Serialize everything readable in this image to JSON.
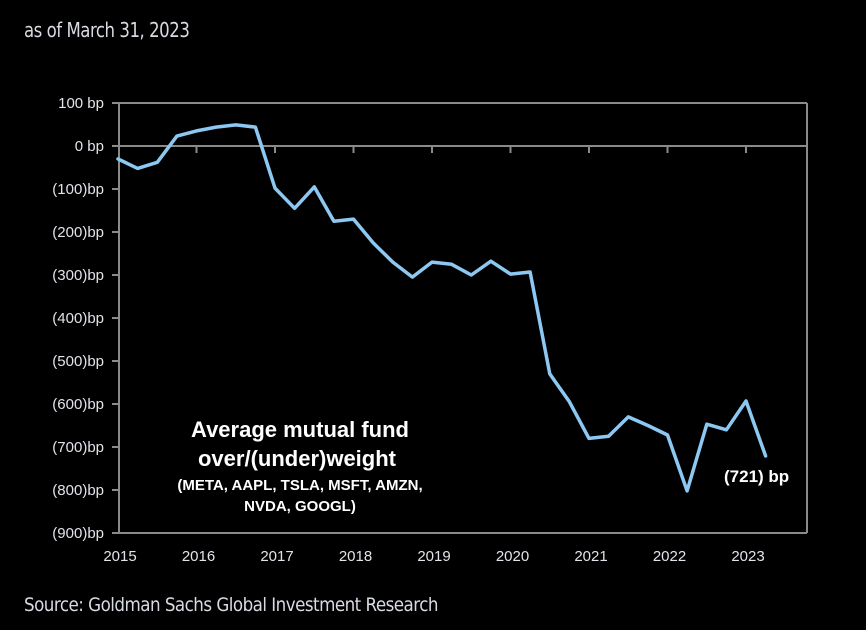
{
  "header": {
    "as_of": "as of March 31, 2023"
  },
  "footer": {
    "source": "Source: Goldman Sachs Global Investment Research"
  },
  "colors": {
    "line": "#8cc8f2",
    "axis": "#8a8a8a",
    "background": "#000000"
  },
  "chart_data": {
    "type": "line",
    "title": "Average mutual fund over/(under)weight",
    "subtitle": "(META, AAPL, TSLA, MSFT, AMZN, NVDA, GOOGL)",
    "annotation_lines": [
      "Average mutual fund",
      "over/(under)weight",
      "(META, AAPL, TSLA, MSFT, AMZN,",
      "NVDA, GOOGL)"
    ],
    "end_label": "(721)  bp",
    "xlabel": "",
    "ylabel": "",
    "xlim": [
      2015.0,
      2023.8
    ],
    "ylim": [
      -900,
      100
    ],
    "y_ticks": [
      100,
      0,
      -100,
      -200,
      -300,
      -400,
      -500,
      -600,
      -700,
      -800,
      -900
    ],
    "y_tick_labels": [
      "100 bp",
      "0 bp",
      "(100)bp",
      "(200)bp",
      "(300)bp",
      "(400)bp",
      "(500)bp",
      "(600)bp",
      "(700)bp",
      "(800)bp",
      "(900)bp"
    ],
    "x_ticks": [
      2015,
      2016,
      2017,
      2018,
      2019,
      2020,
      2021,
      2022,
      2023
    ],
    "x_tick_labels": [
      "2015",
      "2016",
      "2017",
      "2018",
      "2019",
      "2020",
      "2021",
      "2022",
      "2023"
    ],
    "grid": false,
    "legend": "none",
    "series": [
      {
        "name": "Average mutual fund over/(under)weight",
        "x": [
          2015.0,
          2015.25,
          2015.5,
          2015.75,
          2016.0,
          2016.25,
          2016.5,
          2016.75,
          2017.0,
          2017.25,
          2017.5,
          2017.75,
          2018.0,
          2018.25,
          2018.5,
          2018.75,
          2019.0,
          2019.25,
          2019.5,
          2019.75,
          2020.0,
          2020.25,
          2020.5,
          2020.75,
          2021.0,
          2021.25,
          2021.5,
          2021.75,
          2022.0,
          2022.25,
          2022.5,
          2022.75,
          2023.0,
          2023.25
        ],
        "values": [
          -30,
          -52,
          -38,
          23,
          35,
          44,
          49,
          44,
          -98,
          -145,
          -95,
          -175,
          -170,
          -225,
          -270,
          -305,
          -270,
          -275,
          -300,
          -268,
          -298,
          -293,
          -530,
          -595,
          -680,
          -675,
          -630,
          -650,
          -672,
          -802,
          -647,
          -660,
          -593,
          -721
        ]
      }
    ]
  }
}
